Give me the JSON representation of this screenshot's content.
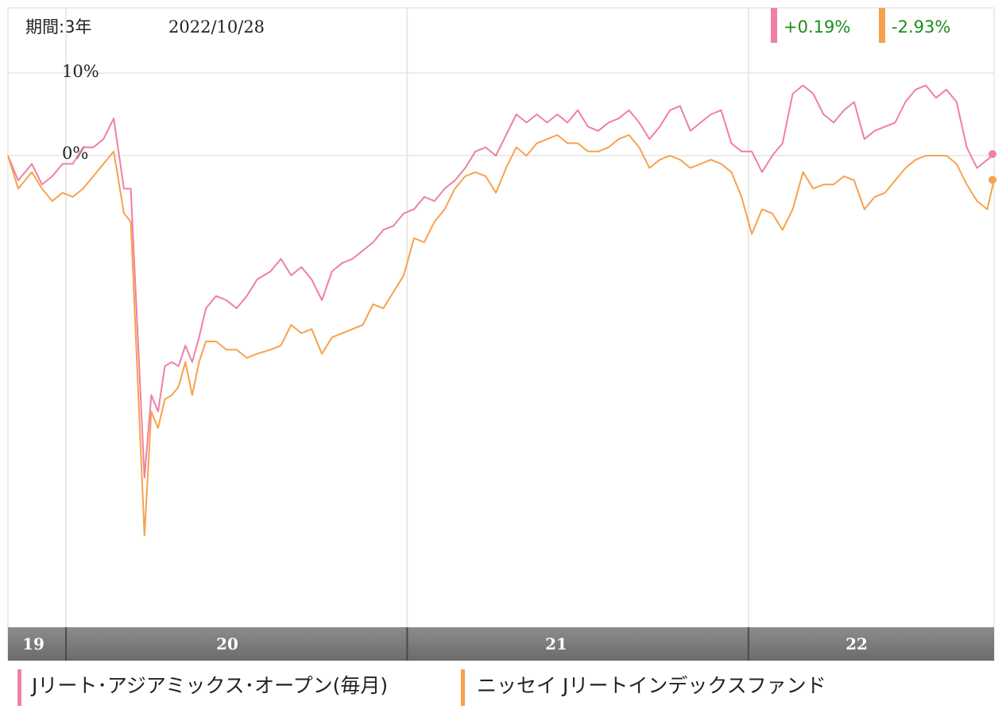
{
  "header": {
    "period_label": "期間:3年",
    "date": "2022/10/28"
  },
  "summary": [
    {
      "value": "+0.19%",
      "color": "#f07fa4",
      "text_color": "#1a8f1a"
    },
    {
      "value": "-2.93%",
      "color": "#f6a24d",
      "text_color": "#1a8f1a"
    }
  ],
  "legend": [
    {
      "name": "Jリート･アジアミックス･オープン(毎月)",
      "color": "#f07fa4"
    },
    {
      "name": "ニッセイ Jリートインデックスファンド",
      "color": "#f6a24d"
    }
  ],
  "chart_data": {
    "type": "line",
    "x_ticks": [
      "19",
      "20",
      "21",
      "22"
    ],
    "y_ticks": [
      "10%",
      "0%"
    ],
    "ylim": [
      -56,
      10
    ],
    "grid": true,
    "series": [
      {
        "name": "Jリート･アジアミックス･オープン(毎月)",
        "color": "#f07fa4",
        "points": [
          [
            2019.83,
            0.0
          ],
          [
            2019.86,
            -3.0
          ],
          [
            2019.9,
            -1.0
          ],
          [
            2019.93,
            -3.5
          ],
          [
            2019.96,
            -2.5
          ],
          [
            2019.99,
            -1.0
          ],
          [
            2020.02,
            -1.0
          ],
          [
            2020.05,
            1.0
          ],
          [
            2020.08,
            1.0
          ],
          [
            2020.11,
            2.0
          ],
          [
            2020.14,
            4.5
          ],
          [
            2020.17,
            -4.0
          ],
          [
            2020.19,
            -4.0
          ],
          [
            2020.23,
            -39.0
          ],
          [
            2020.25,
            -29.0
          ],
          [
            2020.27,
            -31.0
          ],
          [
            2020.29,
            -25.5
          ],
          [
            2020.31,
            -25.0
          ],
          [
            2020.33,
            -25.5
          ],
          [
            2020.35,
            -23.0
          ],
          [
            2020.37,
            -25.0
          ],
          [
            2020.39,
            -22.0
          ],
          [
            2020.41,
            -18.5
          ],
          [
            2020.44,
            -17.0
          ],
          [
            2020.47,
            -17.5
          ],
          [
            2020.5,
            -18.5
          ],
          [
            2020.53,
            -17.0
          ],
          [
            2020.56,
            -15.0
          ],
          [
            2020.6,
            -14.0
          ],
          [
            2020.63,
            -12.5
          ],
          [
            2020.66,
            -14.5
          ],
          [
            2020.69,
            -13.5
          ],
          [
            2020.72,
            -15.0
          ],
          [
            2020.75,
            -17.5
          ],
          [
            2020.78,
            -14.0
          ],
          [
            2020.81,
            -13.0
          ],
          [
            2020.84,
            -12.5
          ],
          [
            2020.87,
            -11.5
          ],
          [
            2020.9,
            -10.5
          ],
          [
            2020.93,
            -9.0
          ],
          [
            2020.96,
            -8.5
          ],
          [
            2020.99,
            -7.0
          ],
          [
            2021.02,
            -6.5
          ],
          [
            2021.05,
            -5.0
          ],
          [
            2021.08,
            -5.5
          ],
          [
            2021.11,
            -4.0
          ],
          [
            2021.14,
            -3.0
          ],
          [
            2021.17,
            -1.5
          ],
          [
            2021.2,
            0.5
          ],
          [
            2021.23,
            1.0
          ],
          [
            2021.26,
            0.0
          ],
          [
            2021.29,
            2.5
          ],
          [
            2021.32,
            5.0
          ],
          [
            2021.35,
            4.0
          ],
          [
            2021.38,
            5.0
          ],
          [
            2021.41,
            4.0
          ],
          [
            2021.44,
            5.0
          ],
          [
            2021.47,
            4.0
          ],
          [
            2021.5,
            5.5
          ],
          [
            2021.53,
            3.5
          ],
          [
            2021.56,
            3.0
          ],
          [
            2021.59,
            4.0
          ],
          [
            2021.62,
            4.5
          ],
          [
            2021.65,
            5.5
          ],
          [
            2021.68,
            4.0
          ],
          [
            2021.71,
            2.0
          ],
          [
            2021.74,
            3.5
          ],
          [
            2021.77,
            5.5
          ],
          [
            2021.8,
            6.0
          ],
          [
            2021.83,
            3.0
          ],
          [
            2021.86,
            4.0
          ],
          [
            2021.89,
            5.0
          ],
          [
            2021.92,
            5.5
          ],
          [
            2021.95,
            1.5
          ],
          [
            2021.98,
            0.5
          ],
          [
            2022.01,
            0.5
          ],
          [
            2022.04,
            -2.0
          ],
          [
            2022.07,
            0.0
          ],
          [
            2022.1,
            1.5
          ],
          [
            2022.13,
            7.5
          ],
          [
            2022.16,
            8.5
          ],
          [
            2022.19,
            7.5
          ],
          [
            2022.22,
            5.0
          ],
          [
            2022.25,
            4.0
          ],
          [
            2022.28,
            5.5
          ],
          [
            2022.31,
            6.5
          ],
          [
            2022.34,
            2.0
          ],
          [
            2022.37,
            3.0
          ],
          [
            2022.4,
            3.5
          ],
          [
            2022.43,
            4.0
          ],
          [
            2022.46,
            6.5
          ],
          [
            2022.49,
            8.0
          ],
          [
            2022.52,
            8.5
          ],
          [
            2022.55,
            7.0
          ],
          [
            2022.58,
            8.0
          ],
          [
            2022.61,
            6.5
          ],
          [
            2022.64,
            1.0
          ],
          [
            2022.67,
            -1.5
          ],
          [
            2022.7,
            -0.5
          ],
          [
            2022.72,
            0.19
          ]
        ]
      },
      {
        "name": "ニッセイ Jリートインデックスファンド",
        "color": "#f6a24d",
        "points": [
          [
            2019.83,
            0.0
          ],
          [
            2019.86,
            -4.0
          ],
          [
            2019.9,
            -2.0
          ],
          [
            2019.93,
            -4.0
          ],
          [
            2019.96,
            -5.5
          ],
          [
            2019.99,
            -4.5
          ],
          [
            2020.02,
            -5.0
          ],
          [
            2020.05,
            -4.0
          ],
          [
            2020.08,
            -2.5
          ],
          [
            2020.11,
            -1.0
          ],
          [
            2020.14,
            0.5
          ],
          [
            2020.17,
            -7.0
          ],
          [
            2020.19,
            -8.0
          ],
          [
            2020.23,
            -46.0
          ],
          [
            2020.25,
            -31.0
          ],
          [
            2020.27,
            -33.0
          ],
          [
            2020.29,
            -29.5
          ],
          [
            2020.31,
            -29.0
          ],
          [
            2020.33,
            -28.0
          ],
          [
            2020.35,
            -25.0
          ],
          [
            2020.37,
            -29.0
          ],
          [
            2020.39,
            -25.0
          ],
          [
            2020.41,
            -22.5
          ],
          [
            2020.44,
            -22.5
          ],
          [
            2020.47,
            -23.5
          ],
          [
            2020.5,
            -23.5
          ],
          [
            2020.53,
            -24.5
          ],
          [
            2020.56,
            -24.0
          ],
          [
            2020.6,
            -23.5
          ],
          [
            2020.63,
            -23.0
          ],
          [
            2020.66,
            -20.5
          ],
          [
            2020.69,
            -21.5
          ],
          [
            2020.72,
            -21.0
          ],
          [
            2020.75,
            -24.0
          ],
          [
            2020.78,
            -22.0
          ],
          [
            2020.81,
            -21.5
          ],
          [
            2020.84,
            -21.0
          ],
          [
            2020.87,
            -20.5
          ],
          [
            2020.9,
            -18.0
          ],
          [
            2020.93,
            -18.5
          ],
          [
            2020.96,
            -16.5
          ],
          [
            2020.99,
            -14.5
          ],
          [
            2021.02,
            -10.0
          ],
          [
            2021.05,
            -10.5
          ],
          [
            2021.08,
            -8.0
          ],
          [
            2021.11,
            -6.5
          ],
          [
            2021.14,
            -4.0
          ],
          [
            2021.17,
            -2.5
          ],
          [
            2021.2,
            -2.0
          ],
          [
            2021.23,
            -2.5
          ],
          [
            2021.26,
            -4.5
          ],
          [
            2021.29,
            -1.5
          ],
          [
            2021.32,
            1.0
          ],
          [
            2021.35,
            0.0
          ],
          [
            2021.38,
            1.5
          ],
          [
            2021.41,
            2.0
          ],
          [
            2021.44,
            2.5
          ],
          [
            2021.47,
            1.5
          ],
          [
            2021.5,
            1.5
          ],
          [
            2021.53,
            0.5
          ],
          [
            2021.56,
            0.5
          ],
          [
            2021.59,
            1.0
          ],
          [
            2021.62,
            2.0
          ],
          [
            2021.65,
            2.5
          ],
          [
            2021.68,
            1.0
          ],
          [
            2021.71,
            -1.5
          ],
          [
            2021.74,
            -0.5
          ],
          [
            2021.77,
            0.0
          ],
          [
            2021.8,
            -0.5
          ],
          [
            2021.83,
            -1.5
          ],
          [
            2021.86,
            -1.0
          ],
          [
            2021.89,
            -0.5
          ],
          [
            2021.92,
            -1.0
          ],
          [
            2021.95,
            -2.0
          ],
          [
            2021.98,
            -5.0
          ],
          [
            2022.01,
            -9.5
          ],
          [
            2022.04,
            -6.5
          ],
          [
            2022.07,
            -7.0
          ],
          [
            2022.1,
            -9.0
          ],
          [
            2022.13,
            -6.5
          ],
          [
            2022.16,
            -2.0
          ],
          [
            2022.19,
            -4.0
          ],
          [
            2022.22,
            -3.5
          ],
          [
            2022.25,
            -3.5
          ],
          [
            2022.28,
            -2.5
          ],
          [
            2022.31,
            -3.0
          ],
          [
            2022.34,
            -6.5
          ],
          [
            2022.37,
            -5.0
          ],
          [
            2022.4,
            -4.5
          ],
          [
            2022.43,
            -3.0
          ],
          [
            2022.46,
            -1.5
          ],
          [
            2022.49,
            -0.5
          ],
          [
            2022.52,
            0.0
          ],
          [
            2022.55,
            0.0
          ],
          [
            2022.58,
            0.0
          ],
          [
            2022.61,
            -1.0
          ],
          [
            2022.64,
            -3.5
          ],
          [
            2022.67,
            -5.5
          ],
          [
            2022.7,
            -6.5
          ],
          [
            2022.72,
            -2.93
          ]
        ]
      }
    ]
  }
}
